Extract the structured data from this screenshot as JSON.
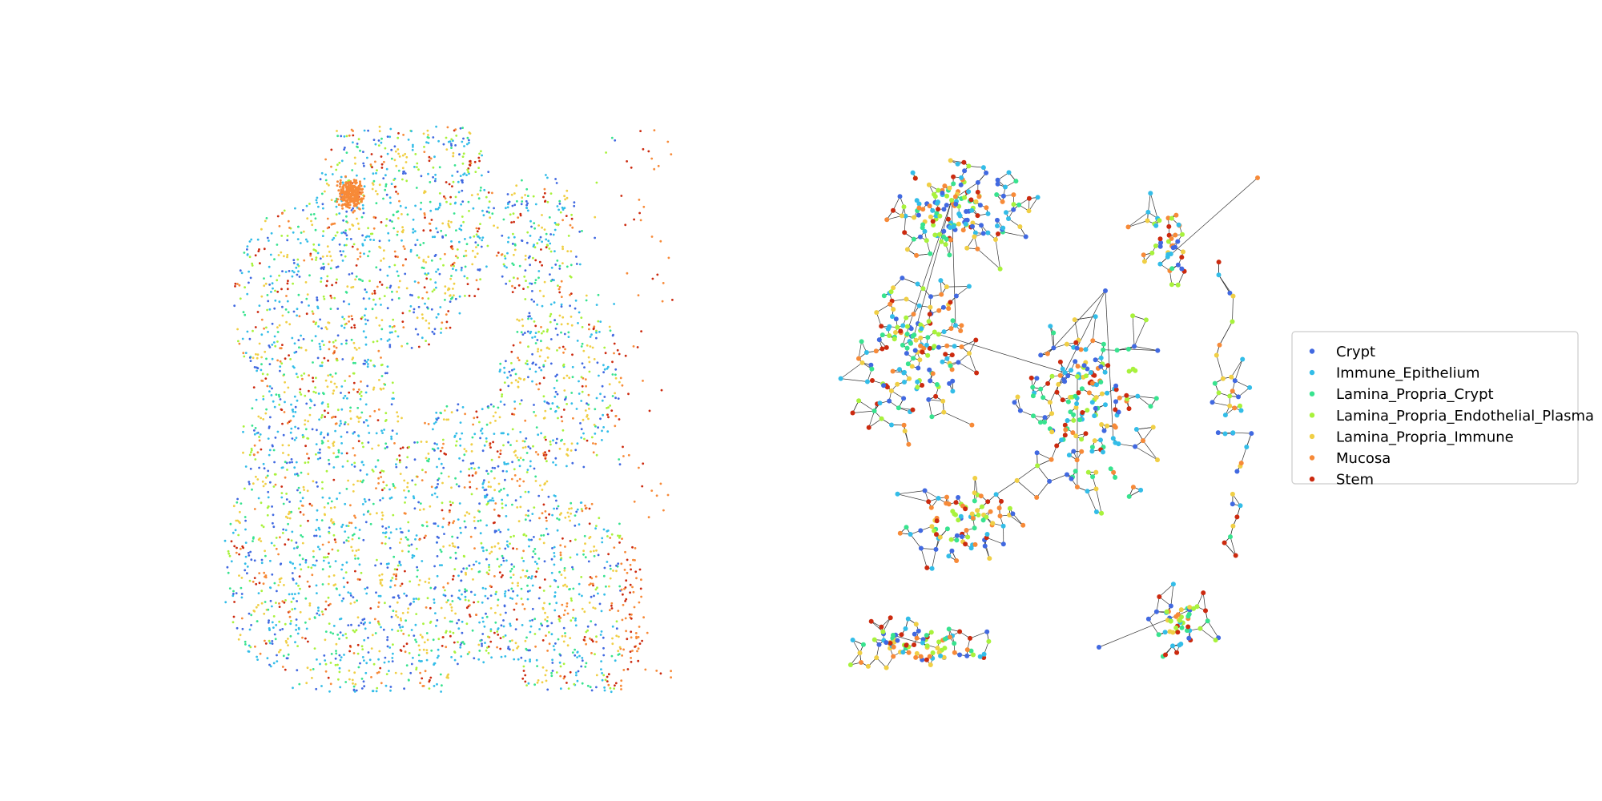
{
  "chart_data": [
    {
      "type": "scatter",
      "title": "",
      "xlabel": "",
      "ylabel": "",
      "axes_visible": false,
      "grid": false,
      "legend": "none",
      "xlim": [
        0,
        1000
      ],
      "ylim": [
        0,
        1260
      ],
      "point_size": "small",
      "series": [
        {
          "name": "Crypt",
          "color": "#4169e1"
        },
        {
          "name": "Immune_Epithelium",
          "color": "#33bde8"
        },
        {
          "name": "Lamina_Propria_Crypt",
          "color": "#38e38f"
        },
        {
          "name": "Lamina_Propria_Endothelial_Plasma",
          "color": "#a8f23c"
        },
        {
          "name": "Lamina_Propria_Immune",
          "color": "#f0cf45"
        },
        {
          "name": "Mucosa",
          "color": "#f78a38"
        },
        {
          "name": "Stem",
          "color": "#cc2a0f"
        }
      ]
    },
    {
      "type": "scatter",
      "subtype": "network-graph",
      "title": "",
      "xlabel": "",
      "ylabel": "",
      "axes_visible": false,
      "grid": false,
      "legend": "center-right",
      "edge_color": "#333333",
      "xlim": [
        0,
        1000
      ],
      "ylim": [
        0,
        1260
      ],
      "point_size": "medium",
      "series": [
        {
          "name": "Crypt",
          "color": "#4169e1"
        },
        {
          "name": "Immune_Epithelium",
          "color": "#33bde8"
        },
        {
          "name": "Lamina_Propria_Crypt",
          "color": "#38e38f"
        },
        {
          "name": "Lamina_Propria_Endothelial_Plasma",
          "color": "#a8f23c"
        },
        {
          "name": "Lamina_Propria_Immune",
          "color": "#f0cf45"
        },
        {
          "name": "Mucosa",
          "color": "#f78a38"
        },
        {
          "name": "Stem",
          "color": "#cc2a0f"
        }
      ]
    }
  ]
}
